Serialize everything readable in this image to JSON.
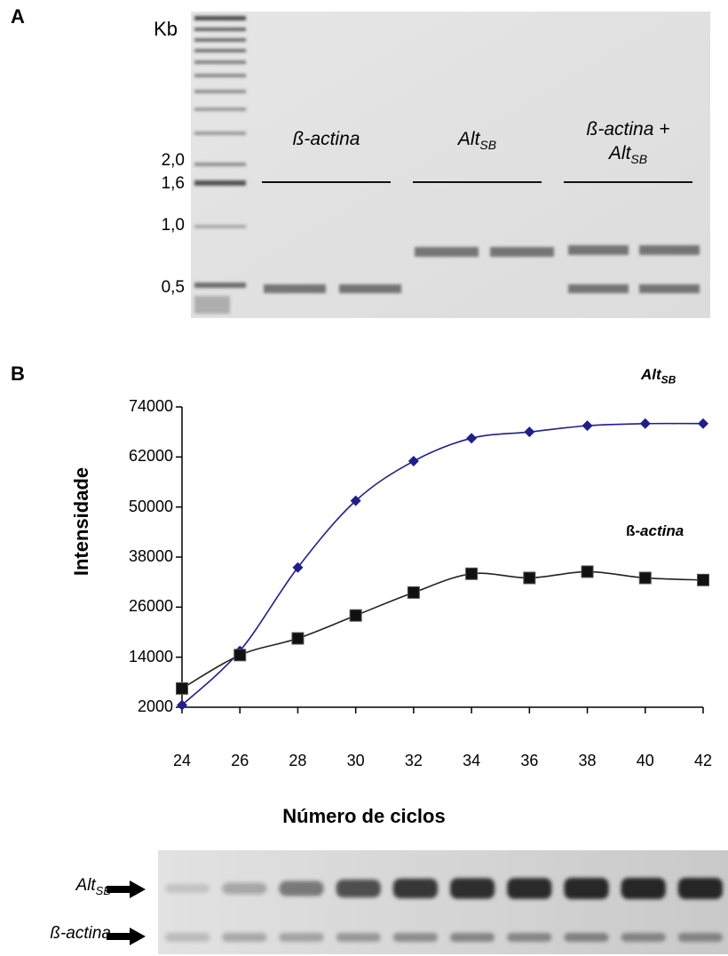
{
  "panel_a": {
    "label": "A",
    "unit": "Kb",
    "markers": [
      "2,0",
      "1,6",
      "1,0",
      "0,5"
    ],
    "lanes": [
      {
        "label": "ß-actina"
      },
      {
        "label": "Alt",
        "sub": "SB"
      },
      {
        "label": "ß-actina +",
        "label2": "Alt",
        "sub2": "SB"
      }
    ]
  },
  "panel_b": {
    "label": "B",
    "legend_alt": {
      "text": "Alt",
      "sub": "SB"
    },
    "legend_actina": {
      "prefix": "ß-",
      "text": "actina"
    },
    "gel_labels": {
      "alt": {
        "text": "Alt",
        "sub": "SB"
      },
      "actina": {
        "text": "ß-actina"
      }
    }
  },
  "colors": {
    "alt": "#1f1f8c",
    "actina": "#222222"
  },
  "chart_data": {
    "type": "line",
    "xlabel": "Número de ciclos",
    "ylabel": "Intensidade",
    "xlim": [
      24,
      42
    ],
    "ylim": [
      2000,
      74000
    ],
    "x_ticks": [
      24,
      26,
      28,
      30,
      32,
      34,
      36,
      38,
      40,
      42
    ],
    "y_ticks": [
      2000,
      14000,
      26000,
      38000,
      50000,
      62000,
      74000
    ],
    "x": [
      24,
      26,
      28,
      30,
      32,
      34,
      36,
      38,
      40,
      42
    ],
    "series": [
      {
        "name": "AltSB",
        "marker": "diamond",
        "values": [
          2500,
          15500,
          35500,
          51500,
          61000,
          66500,
          68000,
          69500,
          70000,
          70000
        ]
      },
      {
        "name": "ß-actina",
        "marker": "square",
        "values": [
          6500,
          14500,
          18500,
          24000,
          29500,
          34000,
          33000,
          34500,
          33000,
          32500
        ]
      }
    ]
  }
}
